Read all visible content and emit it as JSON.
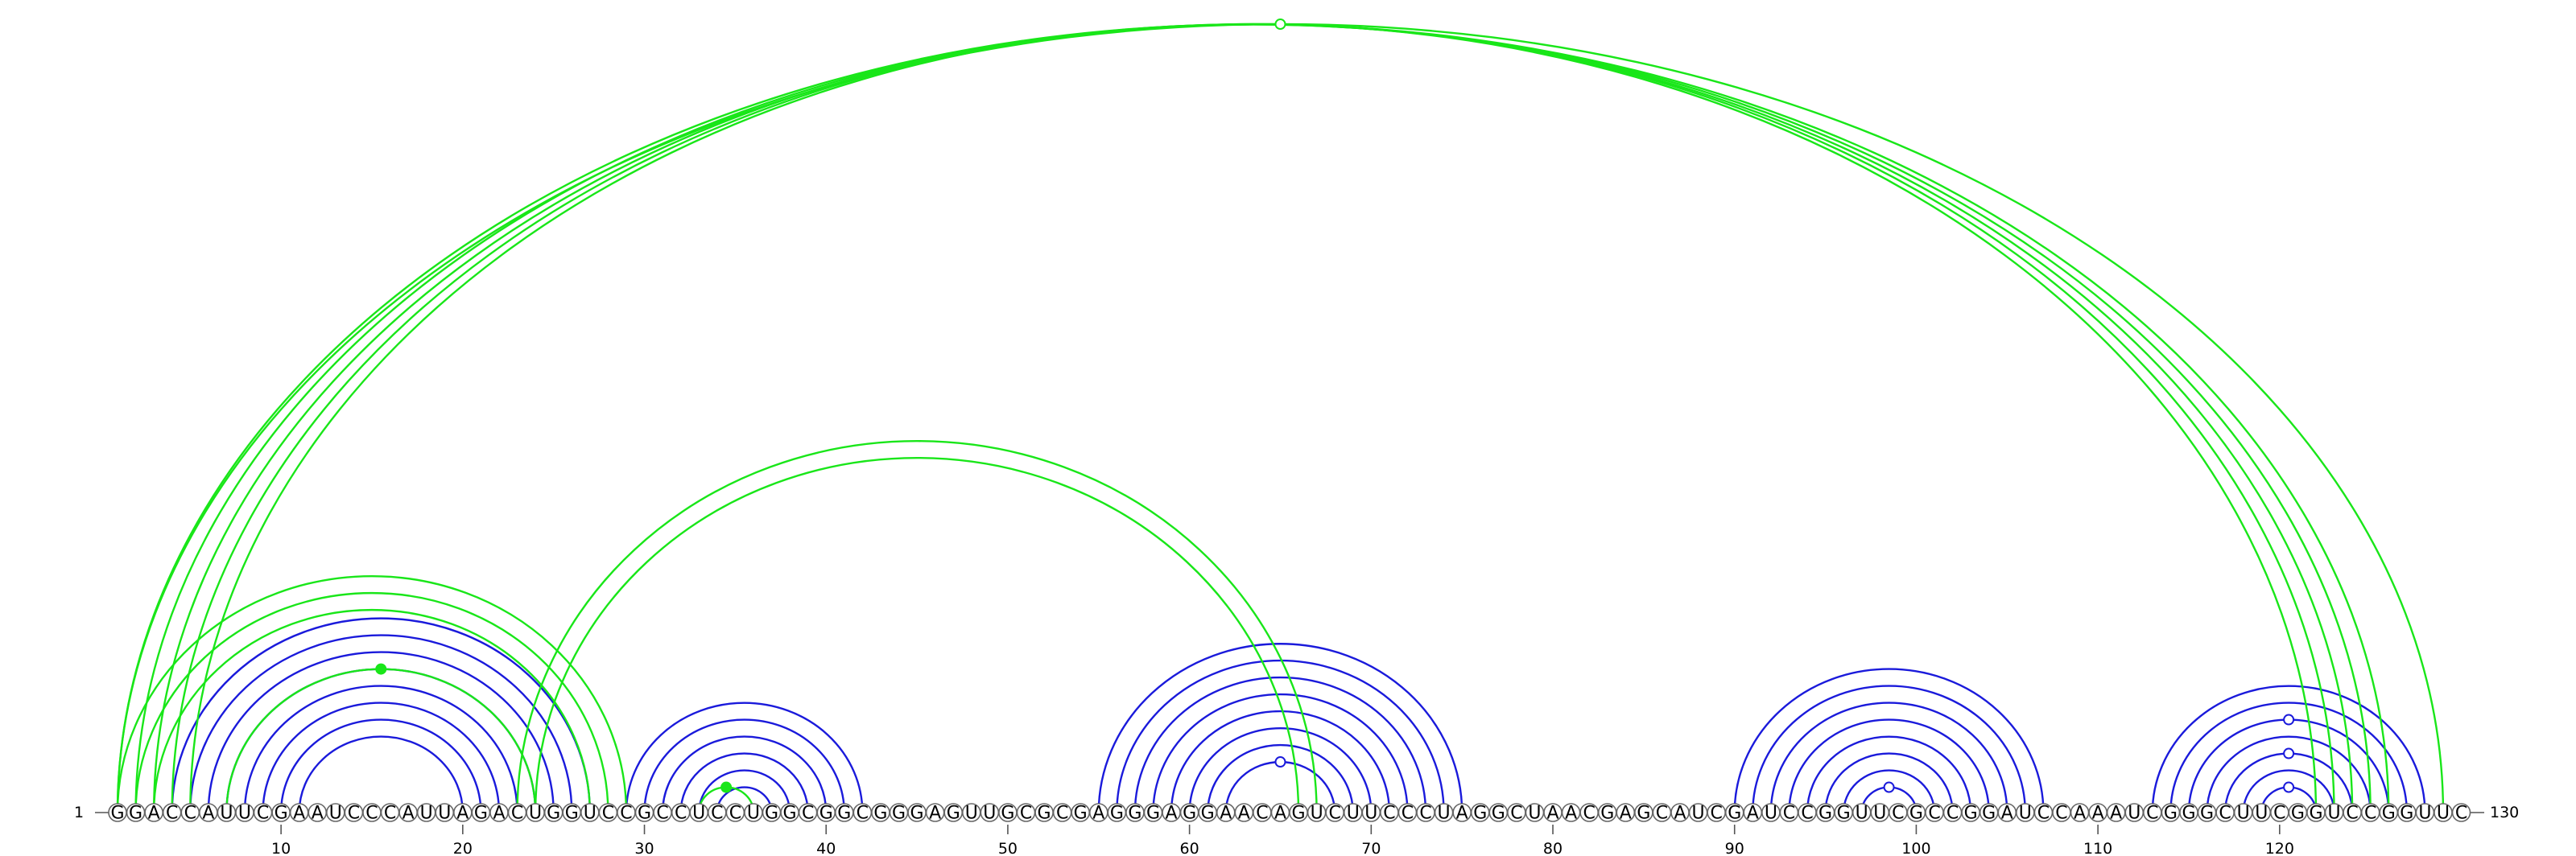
{
  "sequence": "GGACCAUUCGAAUCCCAUUAGACUGGUCCGCCUCCUGGCGGCGGGAGUUGCGCGAGGGAGGAACAGUCUUCCCUAGGCUAACGAGCAUCGAUCCGGUUCGCCGGAUCCAAAUCGGGCUUCGGUCCGGUUC",
  "start_label": "1",
  "end_label": "130",
  "ticks": [
    "10",
    "20",
    "30",
    "40",
    "50",
    "60",
    "70",
    "80",
    "90",
    "100",
    "110",
    "120"
  ],
  "colors": {
    "blue": "#1a1adb",
    "green": "#19e619"
  },
  "stems": [
    {
      "color": "blue",
      "pairs": [
        [
          4,
          27
        ],
        [
          5,
          26
        ],
        [
          6,
          25
        ],
        [
          7,
          24
        ],
        [
          8,
          23
        ],
        [
          9,
          22
        ],
        [
          10,
          21
        ],
        [
          11,
          20
        ]
      ]
    },
    {
      "color": "blue",
      "pairs": [
        [
          29,
          42
        ],
        [
          30,
          41
        ],
        [
          31,
          40
        ],
        [
          32,
          39
        ],
        [
          33,
          38
        ],
        [
          34,
          37
        ]
      ]
    },
    {
      "color": "blue",
      "pairs": [
        [
          55,
          75
        ],
        [
          56,
          74
        ],
        [
          57,
          73
        ],
        [
          58,
          72
        ],
        [
          59,
          71
        ],
        [
          60,
          70
        ],
        [
          61,
          69
        ],
        [
          62,
          68
        ]
      ]
    },
    {
      "color": "blue",
      "pairs": [
        [
          90,
          107
        ],
        [
          91,
          106
        ],
        [
          92,
          105
        ],
        [
          93,
          104
        ],
        [
          94,
          103
        ],
        [
          95,
          102
        ],
        [
          96,
          101
        ],
        [
          97,
          100
        ]
      ]
    },
    {
      "color": "blue",
      "pairs": [
        [
          113,
          128
        ],
        [
          114,
          127
        ],
        [
          115,
          126
        ],
        [
          116,
          125
        ],
        [
          117,
          124
        ],
        [
          118,
          123
        ],
        [
          119,
          122
        ]
      ]
    },
    {
      "color": "green",
      "pairs": [
        [
          1,
          126
        ],
        [
          2,
          125
        ],
        [
          3,
          124
        ],
        [
          4,
          123
        ],
        [
          5,
          122
        ]
      ]
    },
    {
      "color": "green",
      "pairs": [
        [
          1,
          129
        ]
      ]
    },
    {
      "color": "green",
      "pairs": [
        [
          1,
          29
        ],
        [
          2,
          28
        ],
        [
          3,
          27
        ]
      ]
    },
    {
      "color": "green",
      "pairs": [
        [
          7,
          24
        ]
      ]
    },
    {
      "color": "green",
      "pairs": [
        [
          23,
          67
        ],
        [
          24,
          66
        ]
      ]
    },
    {
      "color": "green",
      "pairs": [
        [
          33,
          36
        ]
      ]
    }
  ],
  "markers": [
    {
      "color": "green",
      "i": 1,
      "j": 129,
      "filled": false
    },
    {
      "color": "green",
      "i": 7,
      "j": 24,
      "filled": true
    },
    {
      "color": "green",
      "i": 33,
      "j": 36,
      "filled": true
    },
    {
      "color": "blue",
      "i": 62,
      "j": 68,
      "filled": false
    },
    {
      "color": "blue",
      "i": 97,
      "j": 100,
      "filled": false
    },
    {
      "color": "blue",
      "i": 119,
      "j": 122,
      "filled": false
    },
    {
      "color": "blue",
      "i": 117,
      "j": 124,
      "filled": false
    },
    {
      "color": "blue",
      "i": 115,
      "j": 126,
      "filled": false
    }
  ]
}
